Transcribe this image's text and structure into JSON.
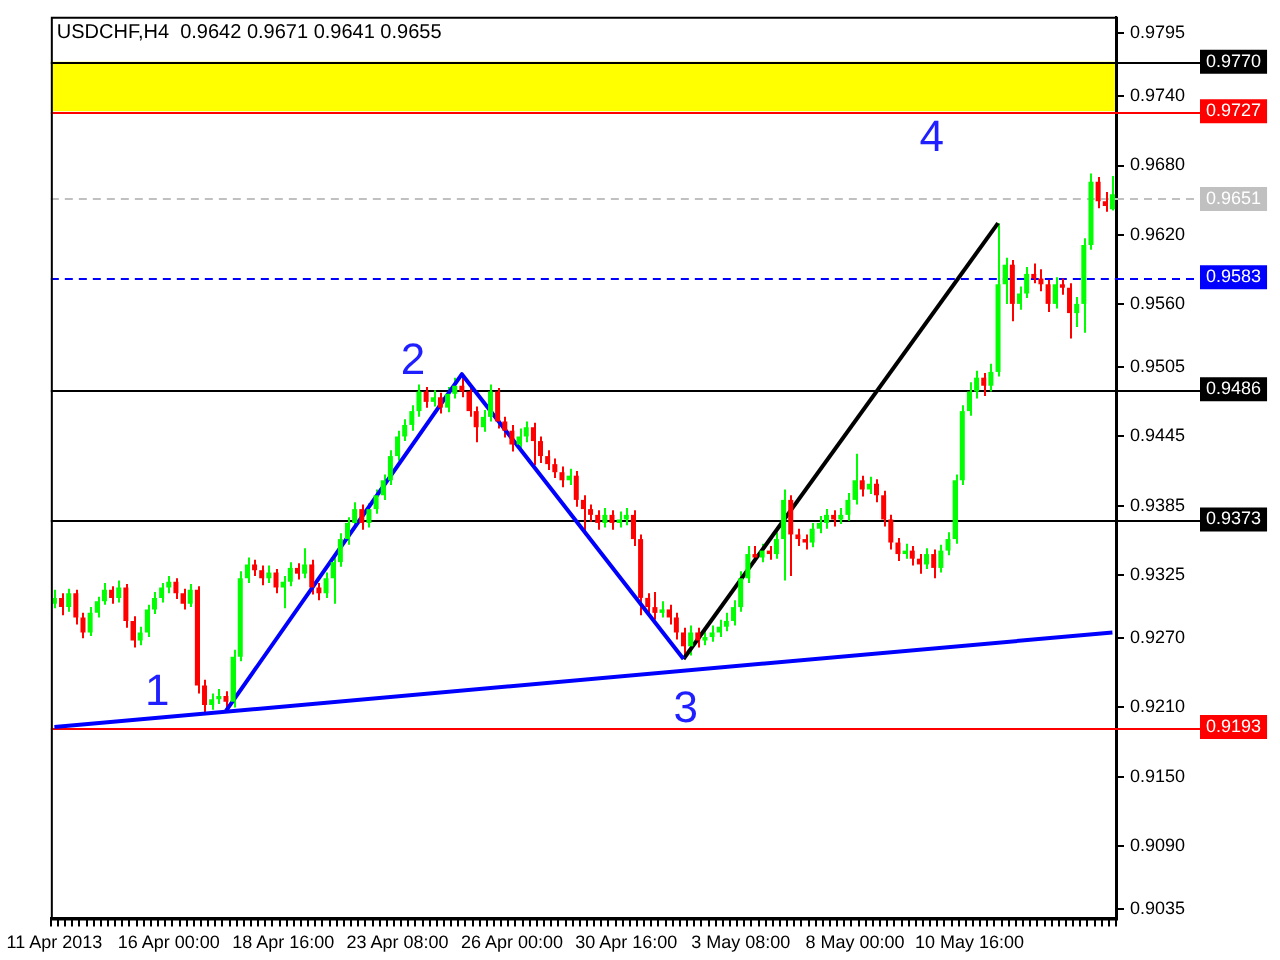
{
  "chart_data": {
    "type": "candlestick",
    "title": "USDCHF,H4  0.9642 0.9671 0.9641 0.9655",
    "categories": [
      "11 Apr 2013",
      null,
      null,
      null,
      null,
      null,
      null,
      null,
      null,
      null,
      null,
      null,
      null,
      null,
      null,
      null,
      "16 Apr 00:00",
      null,
      null,
      null,
      null,
      null,
      null,
      null,
      null,
      null,
      null,
      null,
      null,
      null,
      null,
      null,
      "18 Apr 16:00",
      null,
      null,
      null,
      null,
      null,
      null,
      null,
      null,
      null,
      null,
      null,
      null,
      null,
      null,
      null,
      "23 Apr 08:00",
      null,
      null,
      null,
      null,
      null,
      null,
      null,
      null,
      null,
      null,
      null,
      null,
      null,
      null,
      null,
      "26 Apr 00:00",
      null,
      null,
      null,
      null,
      null,
      null,
      null,
      null,
      null,
      null,
      null,
      null,
      null,
      null,
      null,
      "30 Apr 16:00",
      null,
      null,
      null,
      null,
      null,
      null,
      null,
      null,
      null,
      null,
      null,
      null,
      null,
      null,
      null,
      "3 May 08:00",
      null,
      null,
      null,
      null,
      null,
      null,
      null,
      null,
      null,
      null,
      null,
      null,
      null,
      null,
      null,
      "8 May 00:00",
      null,
      null,
      null,
      null,
      null,
      null,
      null,
      null,
      null,
      null,
      null,
      null,
      null,
      null,
      null,
      "10 May 16:00",
      null,
      null,
      null,
      null,
      null,
      null,
      null,
      null,
      null,
      null,
      null,
      null,
      null,
      null,
      null,
      null,
      null,
      null,
      null,
      null
    ],
    "series": [
      {
        "colors": [
          "#00ff00",
          "#ff0000",
          "#00ff00",
          "#ff0000",
          "#ff0000",
          "#00ff00",
          "#00ff00",
          "#00ff00",
          "#ff0000",
          "#00ff00",
          "#ff0000",
          "#ff0000",
          "#00ff00",
          "#00ff00",
          "#00ff00",
          "#00ff00",
          "#00ff00",
          "#ff0000",
          "#ff0000",
          "#00ff00",
          "#ff0000",
          "#ff0000",
          "#00ff00",
          "#00ff00",
          "#ff0000",
          "#00ff00",
          "#00ff00",
          "#00ff00",
          "#ff0000",
          "#ff0000",
          "#00ff00",
          "#ff0000",
          "#00ff00",
          "#00ff00",
          "#ff0000",
          "#00ff00",
          "#ff0000",
          "#ff0000",
          "#00ff00",
          "#00ff00",
          "#00ff00",
          "#00ff00",
          "#00ff00",
          "#ff0000",
          "#00ff00",
          "#00ff00",
          "#00ff00",
          "#00ff00",
          "#00ff00",
          "#00ff00",
          "#00ff00",
          "#00ff00",
          "#ff0000",
          "#00ff00",
          "#ff0000",
          "#00ff00",
          "#00ff00",
          "#ff0000",
          "#ff0000",
          "#ff0000",
          "#00ff00",
          "#00ff00",
          "#ff0000",
          "#ff0000",
          "#ff0000",
          "#00ff00",
          "#00ff00",
          "#ff0000",
          "#ff0000",
          "#ff0000",
          "#ff0000",
          "#ff0000",
          "#00ff00",
          "#ff0000",
          "#ff0000",
          "#ff0000",
          "#ff0000",
          "#00ff00",
          "#ff0000",
          "#00ff00",
          "#00ff00",
          "#ff0000",
          "#ff0000",
          "#ff0000",
          "#ff0000",
          "#00ff00",
          "#ff0000",
          "#ff0000",
          "#ff0000",
          "#00ff00",
          "#ff0000",
          "#00ff00",
          "#00ff00",
          "#00ff00",
          "#00ff00",
          "#00ff00",
          "#00ff00",
          "#00ff00",
          "#ff0000",
          "#00ff00",
          "#ff0000",
          "#00ff00",
          "#00ff00",
          "#ff0000",
          "#ff0000",
          "#ff0000",
          "#00ff00",
          "#00ff00",
          "#00ff00",
          "#ff0000",
          "#00ff00",
          "#00ff00",
          "#00ff00",
          "#ff0000",
          "#00ff00",
          "#ff0000",
          "#ff0000",
          "#ff0000",
          "#ff0000",
          "#00ff00",
          "#ff0000",
          "#ff0000",
          "#00ff00",
          "#ff0000",
          "#00ff00",
          "#00ff00",
          "#00ff00",
          "#00ff00",
          "#00ff00",
          "#00ff00",
          "#ff0000",
          "#00ff00",
          "#00ff00",
          "#00ff00",
          "#ff0000",
          "#00ff00",
          "#00ff00",
          "#ff0000",
          "#ff0000",
          "#ff0000",
          "#00ff00",
          "#ff0000",
          "#ff0000",
          "#00ff00",
          "#00ff00",
          "#00ff00",
          "#ff0000",
          "#ff0000",
          "#00ff00"
        ],
        "ohlc": [
          [
            0.93,
            0.9312,
            0.9296,
            0.9305
          ],
          [
            0.9305,
            0.9309,
            0.929,
            0.9297
          ],
          [
            0.9297,
            0.9313,
            0.9293,
            0.9309
          ],
          [
            0.9309,
            0.9312,
            0.9282,
            0.9288
          ],
          [
            0.9288,
            0.9292,
            0.927,
            0.9275
          ],
          [
            0.9275,
            0.9297,
            0.9272,
            0.9292
          ],
          [
            0.9292,
            0.9306,
            0.9288,
            0.9302
          ],
          [
            0.9302,
            0.9318,
            0.9299,
            0.9312
          ],
          [
            0.9312,
            0.9315,
            0.93,
            0.9305
          ],
          [
            0.9305,
            0.932,
            0.9301,
            0.9314
          ],
          [
            0.9314,
            0.9317,
            0.9279,
            0.9285
          ],
          [
            0.9285,
            0.9289,
            0.9262,
            0.9268
          ],
          [
            0.9268,
            0.928,
            0.9264,
            0.9275
          ],
          [
            0.9275,
            0.9299,
            0.9271,
            0.9295
          ],
          [
            0.9295,
            0.931,
            0.9291,
            0.9305
          ],
          [
            0.9305,
            0.9318,
            0.9301,
            0.9314
          ],
          [
            0.9314,
            0.9324,
            0.9309,
            0.9319
          ],
          [
            0.9319,
            0.9322,
            0.9304,
            0.9309
          ],
          [
            0.9309,
            0.9313,
            0.9295,
            0.93
          ],
          [
            0.93,
            0.9317,
            0.9297,
            0.9312
          ],
          [
            0.9312,
            0.9315,
            0.9222,
            0.9229
          ],
          [
            0.9229,
            0.9234,
            0.9205,
            0.9212
          ],
          [
            0.9212,
            0.9222,
            0.9208,
            0.9217
          ],
          [
            0.9217,
            0.9226,
            0.9213,
            0.922
          ],
          [
            0.922,
            0.9224,
            0.9207,
            0.9215
          ],
          [
            0.9215,
            0.926,
            0.921,
            0.9254
          ],
          [
            0.9254,
            0.9328,
            0.925,
            0.9322
          ],
          [
            0.9322,
            0.934,
            0.9318,
            0.9334
          ],
          [
            0.9334,
            0.9338,
            0.9324,
            0.9329
          ],
          [
            0.9329,
            0.9333,
            0.9316,
            0.9322
          ],
          [
            0.9322,
            0.9333,
            0.9318,
            0.9327
          ],
          [
            0.9327,
            0.933,
            0.9309,
            0.9314
          ],
          [
            0.9314,
            0.9324,
            0.9296,
            0.9319
          ],
          [
            0.9319,
            0.9336,
            0.9315,
            0.9331
          ],
          [
            0.9331,
            0.9335,
            0.9321,
            0.9326
          ],
          [
            0.9326,
            0.9348,
            0.9322,
            0.9334
          ],
          [
            0.9334,
            0.9338,
            0.9308,
            0.9314
          ],
          [
            0.9314,
            0.9318,
            0.9303,
            0.9309
          ],
          [
            0.9309,
            0.9327,
            0.9305,
            0.9322
          ],
          [
            0.9322,
            0.9342,
            0.93,
            0.9336
          ],
          [
            0.9336,
            0.9361,
            0.9332,
            0.9356
          ],
          [
            0.9356,
            0.9375,
            0.9351,
            0.937
          ],
          [
            0.937,
            0.9388,
            0.9365,
            0.9382
          ],
          [
            0.9382,
            0.9386,
            0.9364,
            0.937
          ],
          [
            0.937,
            0.9387,
            0.9366,
            0.9382
          ],
          [
            0.9382,
            0.9399,
            0.9378,
            0.9394
          ],
          [
            0.9394,
            0.9412,
            0.939,
            0.9407
          ],
          [
            0.9407,
            0.9433,
            0.9403,
            0.9428
          ],
          [
            0.9428,
            0.945,
            0.9424,
            0.9445
          ],
          [
            0.9445,
            0.946,
            0.9441,
            0.9455
          ],
          [
            0.9455,
            0.9472,
            0.945,
            0.9467
          ],
          [
            0.9467,
            0.949,
            0.9462,
            0.9484
          ],
          [
            0.9484,
            0.9488,
            0.947,
            0.9475
          ],
          [
            0.9475,
            0.9485,
            0.9471,
            0.9479
          ],
          [
            0.9479,
            0.9483,
            0.9465,
            0.947
          ],
          [
            0.947,
            0.9488,
            0.9466,
            0.9482
          ],
          [
            0.9482,
            0.9496,
            0.9478,
            0.9489
          ],
          [
            0.9489,
            0.9499,
            0.9479,
            0.9484
          ],
          [
            0.9484,
            0.9488,
            0.9462,
            0.9467
          ],
          [
            0.9467,
            0.9471,
            0.944,
            0.9453
          ],
          [
            0.9453,
            0.9468,
            0.9449,
            0.9462
          ],
          [
            0.9462,
            0.949,
            0.9458,
            0.9484
          ],
          [
            0.9484,
            0.9487,
            0.9452,
            0.9458
          ],
          [
            0.9458,
            0.9462,
            0.9444,
            0.945
          ],
          [
            0.945,
            0.9455,
            0.9432,
            0.9438
          ],
          [
            0.9438,
            0.9452,
            0.9434,
            0.9445
          ],
          [
            0.9445,
            0.9458,
            0.944,
            0.9453
          ],
          [
            0.9453,
            0.9457,
            0.942,
            0.9441
          ],
          [
            0.9441,
            0.9445,
            0.9422,
            0.9428
          ],
          [
            0.9428,
            0.9433,
            0.9416,
            0.9421
          ],
          [
            0.9421,
            0.9426,
            0.9409,
            0.9414
          ],
          [
            0.9414,
            0.9419,
            0.9401,
            0.9407
          ],
          [
            0.9407,
            0.9417,
            0.9403,
            0.9411
          ],
          [
            0.9411,
            0.9415,
            0.9384,
            0.939
          ],
          [
            0.939,
            0.9394,
            0.936,
            0.9382
          ],
          [
            0.9382,
            0.9386,
            0.9371,
            0.9377
          ],
          [
            0.9377,
            0.9381,
            0.9364,
            0.937
          ],
          [
            0.937,
            0.9383,
            0.9366,
            0.9377
          ],
          [
            0.9377,
            0.9381,
            0.9364,
            0.937
          ],
          [
            0.937,
            0.938,
            0.9366,
            0.9373
          ],
          [
            0.9373,
            0.9383,
            0.9368,
            0.9377
          ],
          [
            0.9377,
            0.9381,
            0.935,
            0.9356
          ],
          [
            0.9356,
            0.936,
            0.929,
            0.9305
          ],
          [
            0.9305,
            0.9309,
            0.9291,
            0.9297
          ],
          [
            0.9297,
            0.931,
            0.9286,
            0.9292
          ],
          [
            0.9292,
            0.9302,
            0.9288,
            0.9295
          ],
          [
            0.9295,
            0.9299,
            0.9282,
            0.9288
          ],
          [
            0.9288,
            0.9292,
            0.9269,
            0.9275
          ],
          [
            0.9275,
            0.9279,
            0.9252,
            0.9263
          ],
          [
            0.9263,
            0.9281,
            0.9255,
            0.9275
          ],
          [
            0.9275,
            0.9279,
            0.9262,
            0.9268
          ],
          [
            0.9268,
            0.9278,
            0.9264,
            0.9271
          ],
          [
            0.9271,
            0.9281,
            0.9267,
            0.9275
          ],
          [
            0.9275,
            0.9286,
            0.9271,
            0.928
          ],
          [
            0.928,
            0.9292,
            0.9276,
            0.9285
          ],
          [
            0.9285,
            0.9303,
            0.9281,
            0.9297
          ],
          [
            0.9297,
            0.9328,
            0.9293,
            0.9322
          ],
          [
            0.9322,
            0.935,
            0.9318,
            0.9343
          ],
          [
            0.9343,
            0.935,
            0.9336,
            0.934
          ],
          [
            0.934,
            0.9352,
            0.9336,
            0.9346
          ],
          [
            0.9346,
            0.935,
            0.9338,
            0.9343
          ],
          [
            0.9343,
            0.9362,
            0.9339,
            0.9356
          ],
          [
            0.9356,
            0.9399,
            0.932,
            0.939
          ],
          [
            0.939,
            0.9394,
            0.9324,
            0.936
          ],
          [
            0.936,
            0.9365,
            0.935,
            0.9356
          ],
          [
            0.9356,
            0.936,
            0.9347,
            0.9353
          ],
          [
            0.9353,
            0.937,
            0.9349,
            0.9365
          ],
          [
            0.9365,
            0.9376,
            0.9361,
            0.937
          ],
          [
            0.937,
            0.9382,
            0.9365,
            0.9377
          ],
          [
            0.9377,
            0.9381,
            0.9367,
            0.9373
          ],
          [
            0.9373,
            0.9383,
            0.9369,
            0.9377
          ],
          [
            0.9377,
            0.9396,
            0.9372,
            0.939
          ],
          [
            0.939,
            0.943,
            0.9386,
            0.9407
          ],
          [
            0.9407,
            0.9411,
            0.9393,
            0.9399
          ],
          [
            0.9399,
            0.941,
            0.9395,
            0.9404
          ],
          [
            0.9404,
            0.9408,
            0.9388,
            0.9394
          ],
          [
            0.9394,
            0.9398,
            0.9367,
            0.9373
          ],
          [
            0.9373,
            0.9377,
            0.9347,
            0.9353
          ],
          [
            0.9353,
            0.9357,
            0.9337,
            0.9343
          ],
          [
            0.9343,
            0.9352,
            0.9339,
            0.9346
          ],
          [
            0.9346,
            0.935,
            0.9333,
            0.9339
          ],
          [
            0.9339,
            0.9343,
            0.9326,
            0.9334
          ],
          [
            0.9334,
            0.9348,
            0.933,
            0.9343
          ],
          [
            0.9343,
            0.9347,
            0.9322,
            0.9331
          ],
          [
            0.9331,
            0.9351,
            0.9327,
            0.9346
          ],
          [
            0.9346,
            0.9362,
            0.9342,
            0.9356
          ],
          [
            0.9356,
            0.9412,
            0.9352,
            0.9407
          ],
          [
            0.9407,
            0.9472,
            0.9403,
            0.9467
          ],
          [
            0.9467,
            0.9492,
            0.9463,
            0.9484
          ],
          [
            0.9484,
            0.9502,
            0.9478,
            0.9496
          ],
          [
            0.9496,
            0.95,
            0.948,
            0.9489
          ],
          [
            0.9489,
            0.9508,
            0.9484,
            0.9501
          ],
          [
            0.9501,
            0.963,
            0.9497,
            0.9577
          ],
          [
            0.9577,
            0.96,
            0.956,
            0.9594
          ],
          [
            0.9594,
            0.9598,
            0.9545,
            0.956
          ],
          [
            0.956,
            0.9575,
            0.9555,
            0.9569
          ],
          [
            0.9569,
            0.9592,
            0.9565,
            0.9586
          ],
          [
            0.9586,
            0.9595,
            0.9578,
            0.9582
          ],
          [
            0.9582,
            0.959,
            0.9571,
            0.9577
          ],
          [
            0.9577,
            0.9581,
            0.9553,
            0.956
          ],
          [
            0.956,
            0.9583,
            0.9556,
            0.9577
          ],
          [
            0.9577,
            0.9582,
            0.9568,
            0.9574
          ],
          [
            0.9574,
            0.9578,
            0.953,
            0.9552
          ],
          [
            0.9552,
            0.9566,
            0.954,
            0.956
          ],
          [
            0.956,
            0.9617,
            0.9535,
            0.9611
          ],
          [
            0.9611,
            0.9673,
            0.9607,
            0.9666
          ],
          [
            0.9666,
            0.967,
            0.9643,
            0.9649
          ],
          [
            0.9649,
            0.9657,
            0.964,
            0.9645
          ],
          [
            0.9642,
            0.9671,
            0.9641,
            0.9655
          ]
        ]
      },
      {
        "type": "line",
        "color": "#0000ff",
        "values": [
          0.9193,
          null,
          null,
          null,
          null,
          null,
          null,
          null,
          null,
          null,
          null,
          null,
          null,
          null,
          null,
          null,
          null,
          null,
          null,
          null,
          null,
          null,
          null,
          null,
          null,
          null,
          null,
          null,
          null,
          null,
          null,
          null,
          null,
          null,
          null,
          null,
          null,
          null,
          null,
          null,
          null,
          null,
          null,
          null,
          null,
          null,
          null,
          null,
          null,
          null,
          null,
          null,
          null,
          null,
          null,
          null,
          null,
          null,
          null,
          null,
          null,
          null,
          null,
          null,
          null,
          null,
          null,
          null,
          null,
          null,
          null,
          null,
          null,
          null,
          null,
          null,
          null,
          null,
          null,
          null,
          null,
          null,
          null,
          null,
          null,
          null,
          null,
          null,
          null,
          null,
          null,
          null,
          null,
          null,
          null,
          null,
          null,
          null,
          null,
          null,
          null,
          null,
          null,
          null,
          null,
          null,
          null,
          null,
          null,
          null,
          null,
          null,
          null,
          null,
          null,
          null,
          null,
          null,
          null,
          null,
          null,
          null,
          null,
          null,
          null,
          null,
          null,
          null,
          null,
          null,
          null,
          null,
          null,
          null,
          null,
          null,
          null,
          null,
          null,
          null,
          null,
          null,
          null,
          null,
          null,
          null,
          null,
          null,
          0.9275
        ]
      },
      {
        "type": "line",
        "color": "#0000ff",
        "values": [
          null,
          null,
          null,
          null,
          null,
          null,
          null,
          null,
          null,
          null,
          null,
          null,
          null,
          null,
          null,
          null,
          null,
          null,
          null,
          null,
          null,
          null,
          null,
          null,
          0.9207,
          null,
          null,
          null,
          null,
          null,
          null,
          null,
          null,
          null,
          null,
          null,
          null,
          null,
          null,
          null,
          null,
          null,
          null,
          null,
          null,
          null,
          null,
          null,
          null,
          null,
          null,
          null,
          null,
          null,
          null,
          null,
          null,
          0.9499,
          null,
          null,
          null,
          null,
          null,
          null,
          null,
          null,
          null,
          null,
          null,
          null,
          null,
          null,
          null,
          null,
          null,
          null,
          null,
          null,
          null,
          null,
          null,
          null,
          null,
          null,
          null,
          null,
          null,
          null,
          0.9252,
          null,
          null,
          null,
          null,
          null,
          null,
          null,
          null,
          null,
          null,
          null,
          null,
          null,
          null,
          null,
          null,
          null,
          null,
          null,
          null,
          null,
          null,
          null,
          null,
          null,
          null,
          null,
          null,
          null,
          null,
          null,
          null,
          null,
          null,
          null,
          null,
          null,
          null,
          null,
          null,
          null,
          null,
          null,
          null,
          null,
          null,
          null,
          null,
          null,
          null,
          null,
          null,
          null,
          null,
          null,
          null,
          null,
          null,
          null,
          null
        ]
      },
      {
        "type": "line",
        "color": "#000000",
        "values": [
          null,
          null,
          null,
          null,
          null,
          null,
          null,
          null,
          null,
          null,
          null,
          null,
          null,
          null,
          null,
          null,
          null,
          null,
          null,
          null,
          null,
          null,
          null,
          null,
          null,
          null,
          null,
          null,
          null,
          null,
          null,
          null,
          null,
          null,
          null,
          null,
          null,
          null,
          null,
          null,
          null,
          null,
          null,
          null,
          null,
          null,
          null,
          null,
          null,
          null,
          null,
          null,
          null,
          null,
          null,
          null,
          null,
          null,
          null,
          null,
          null,
          null,
          null,
          null,
          null,
          null,
          null,
          null,
          null,
          null,
          null,
          null,
          null,
          null,
          null,
          null,
          null,
          null,
          null,
          null,
          null,
          null,
          null,
          null,
          null,
          null,
          null,
          null,
          0.9252,
          null,
          null,
          null,
          null,
          null,
          null,
          null,
          null,
          null,
          null,
          null,
          null,
          null,
          null,
          null,
          null,
          null,
          null,
          null,
          null,
          null,
          null,
          null,
          null,
          null,
          null,
          null,
          null,
          null,
          null,
          null,
          null,
          null,
          null,
          null,
          null,
          null,
          null,
          null,
          null,
          null,
          null,
          null,
          0.963,
          null,
          null,
          null,
          null,
          null,
          null,
          null,
          null,
          null,
          null,
          null,
          null,
          null,
          null,
          null,
          null
        ]
      }
    ],
    "ylim": [
      0.9027,
      0.9809
    ],
    "yticks": [
      0.9035,
      {
        "value": 0.909,
        "label": "0.9090"
      },
      {
        "value": 0.915,
        "label": "0.9150"
      },
      {
        "value": 0.921,
        "label": "0.9210"
      },
      {
        "value": 0.927,
        "label": "0.9270"
      },
      0.9325,
      0.9385,
      0.9445,
      0.9505,
      {
        "value": 0.956,
        "label": "0.9560"
      },
      {
        "value": 0.962,
        "label": "0.9620"
      },
      {
        "value": 0.968,
        "label": "0.9680"
      },
      {
        "value": 0.974,
        "label": "0.9740"
      },
      0.9795
    ],
    "grid": false,
    "legend": false,
    "bands": [
      {
        "axis": "y",
        "from": 0.9727,
        "to": 0.977,
        "color": "#ffff00"
      }
    ],
    "ref_lines": [
      {
        "axis": "y",
        "value": 0.977,
        "label": "0.9770",
        "color": "#000000"
      },
      {
        "axis": "y",
        "value": 0.9727,
        "label": "0.9727",
        "color": "#ff0000"
      },
      {
        "axis": "y",
        "value": 0.9651,
        "label": "0.9651",
        "color": "#c0c0c0",
        "line_style": "dashed"
      },
      {
        "axis": "y",
        "value": 0.9583,
        "label": "0.9583",
        "color": "#0000ff",
        "line_style": "dashed"
      },
      {
        "axis": "y",
        "value": 0.9486,
        "label": "0.9486",
        "color": "#000000"
      },
      {
        "axis": "y",
        "value": 0.9373,
        "label": "0.9373",
        "color": "#000000"
      },
      {
        "axis": "y",
        "value": 0.9193,
        "label": "0.9193",
        "color": "#ff0000"
      }
    ],
    "annotations": [
      "1",
      "2",
      "3",
      "4"
    ]
  }
}
